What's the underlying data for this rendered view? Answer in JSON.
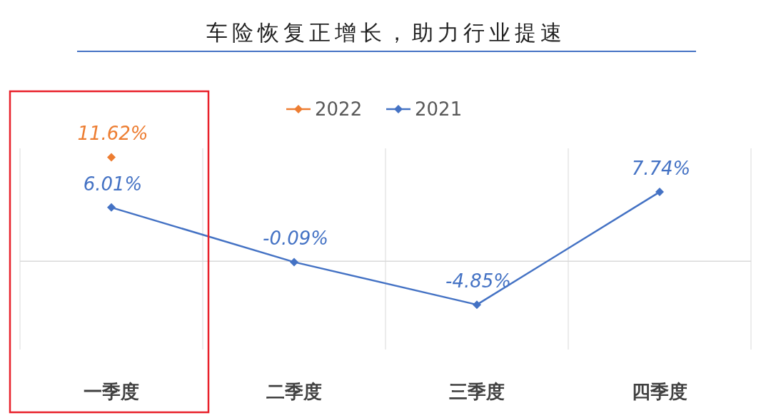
{
  "chart_data": {
    "type": "line",
    "title": "车险恢复正增长，助力行业提速",
    "categories": [
      "一季度",
      "二季度",
      "三季度",
      "四季度"
    ],
    "series": [
      {
        "name": "2022",
        "color": "#ed7d31",
        "values": [
          11.62,
          null,
          null,
          null
        ],
        "value_labels": [
          "11.62%",
          null,
          null,
          null
        ]
      },
      {
        "name": "2021",
        "color": "#4472c4",
        "values": [
          6.01,
          -0.09,
          -4.85,
          7.74
        ],
        "value_labels": [
          "6.01%",
          "-0.09%",
          "-4.85%",
          "7.74%"
        ]
      }
    ],
    "marker": "diamond",
    "line_style": "solid",
    "grid": "x",
    "legend": "top"
  }
}
